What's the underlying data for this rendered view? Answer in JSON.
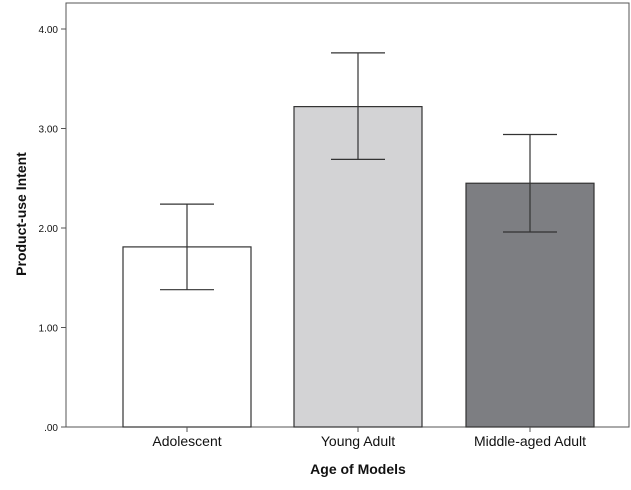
{
  "chart_data": {
    "type": "bar",
    "title": "",
    "xlabel": "Age of Models",
    "ylabel": "Product-use Intent",
    "categories": [
      "Adolescent",
      "Young Adult",
      "Middle-aged Adult"
    ],
    "values": [
      1.81,
      3.22,
      2.45
    ],
    "error_upper": [
      2.24,
      3.76,
      2.94
    ],
    "error_lower": [
      1.38,
      2.69,
      1.96
    ],
    "bar_colors": [
      "#ffffff",
      "#d3d3d5",
      "#7d7e82"
    ],
    "ylim": [
      0,
      4
    ],
    "yticks": [
      0,
      1,
      2,
      3,
      4
    ],
    "ytick_labels": [
      ".00",
      "1.00",
      "2.00",
      "3.00",
      "4.00"
    ],
    "grid": false,
    "legend": "none"
  }
}
